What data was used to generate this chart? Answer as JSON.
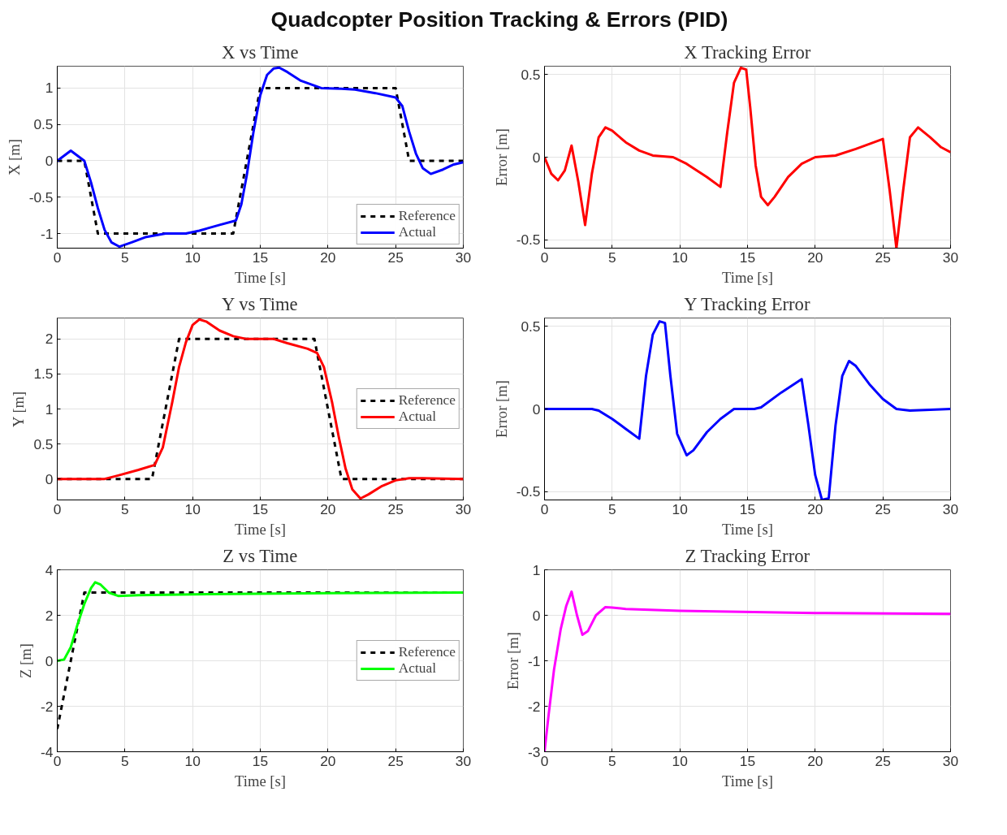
{
  "chart_data": [
    {
      "type": "line",
      "title": "X vs Time",
      "xlabel": "Time [s]",
      "ylabel": "X [m]",
      "annotations": [
        "Quadcopter Position Tracking & Errors (PID)"
      ],
      "xlim": [
        0,
        30
      ],
      "xticks": [
        0,
        5,
        10,
        15,
        20,
        25,
        30
      ],
      "ylim": [
        -1.2,
        1.3
      ],
      "yticks": [
        -1,
        -0.5,
        0,
        0.5,
        1
      ],
      "grid": true,
      "legend": "bottom right",
      "series": [
        {
          "name": "Reference",
          "color": "#000000",
          "line_style": "dashed",
          "x": [
            0,
            2,
            3,
            13,
            15,
            25,
            26,
            30
          ],
          "values": [
            0,
            0,
            -1,
            -1,
            1,
            1,
            0,
            0
          ]
        },
        {
          "name": "Actual",
          "color": "#0000ff",
          "line_style": "solid",
          "x": [
            0,
            1,
            2,
            2.5,
            3,
            3.5,
            4,
            4.6,
            5.5,
            6.5,
            8,
            9.5,
            10.5,
            12,
            13.2,
            13.6,
            14,
            14.5,
            15,
            15.5,
            16,
            16.4,
            17,
            18,
            19.5,
            21,
            22,
            23.5,
            25,
            25.5,
            26,
            26.5,
            27,
            27.6,
            28.5,
            29.3,
            30
          ],
          "values": [
            0,
            0.14,
            0,
            -0.3,
            -0.65,
            -0.95,
            -1.12,
            -1.18,
            -1.12,
            -1.05,
            -1.0,
            -1.0,
            -0.96,
            -0.88,
            -0.82,
            -0.6,
            -0.2,
            0.4,
            0.9,
            1.18,
            1.27,
            1.28,
            1.22,
            1.1,
            1.0,
            0.99,
            0.98,
            0.93,
            0.87,
            0.75,
            0.4,
            0.1,
            -0.1,
            -0.18,
            -0.12,
            -0.05,
            -0.02
          ]
        }
      ]
    },
    {
      "type": "line",
      "title": "X Tracking Error",
      "xlabel": "Time [s]",
      "ylabel": "Error [m]",
      "xlim": [
        0,
        30
      ],
      "xticks": [
        0,
        5,
        10,
        15,
        20,
        25,
        30
      ],
      "ylim": [
        -0.55,
        0.55
      ],
      "yticks": [
        -0.5,
        0,
        0.5
      ],
      "grid": true,
      "series": [
        {
          "color": "#ff0000",
          "line_style": "solid",
          "x": [
            0,
            0.5,
            1,
            1.5,
            2,
            2.5,
            3,
            3.5,
            4,
            4.5,
            5,
            6,
            7,
            8,
            9.5,
            10.5,
            12,
            13,
            13.5,
            14,
            14.5,
            14.9,
            15.2,
            15.6,
            16,
            16.5,
            17,
            18,
            19,
            20,
            21.5,
            23,
            25,
            25.5,
            26,
            26.5,
            27,
            27.6,
            28.5,
            29.3,
            30
          ],
          "values": [
            0,
            -0.1,
            -0.14,
            -0.08,
            0.07,
            -0.15,
            -0.41,
            -0.1,
            0.12,
            0.18,
            0.16,
            0.09,
            0.04,
            0.01,
            0,
            -0.04,
            -0.12,
            -0.18,
            0.15,
            0.45,
            0.54,
            0.53,
            0.3,
            -0.05,
            -0.24,
            -0.29,
            -0.24,
            -0.12,
            -0.04,
            0,
            0.01,
            0.05,
            0.11,
            -0.2,
            -0.55,
            -0.2,
            0.12,
            0.18,
            0.12,
            0.06,
            0.03
          ]
        }
      ]
    },
    {
      "type": "line",
      "title": "Y vs Time",
      "xlabel": "Time [s]",
      "ylabel": "Y [m]",
      "xlim": [
        0,
        30
      ],
      "xticks": [
        0,
        5,
        10,
        15,
        20,
        25,
        30
      ],
      "ylim": [
        -0.3,
        2.3
      ],
      "yticks": [
        0,
        0.5,
        1,
        1.5,
        2
      ],
      "grid": true,
      "legend": "right",
      "series": [
        {
          "name": "Reference",
          "color": "#000000",
          "line_style": "dashed",
          "x": [
            0,
            7,
            9,
            19,
            21,
            30
          ],
          "values": [
            0,
            0,
            2,
            2,
            0,
            0
          ]
        },
        {
          "name": "Actual",
          "color": "#ff0000",
          "line_style": "solid",
          "x": [
            0,
            3.5,
            4.5,
            6,
            7.2,
            7.8,
            8.5,
            9,
            9.5,
            10,
            10.5,
            11,
            12,
            13,
            14,
            16,
            17,
            18.5,
            19.2,
            19.7,
            20.3,
            20.8,
            21.3,
            21.8,
            22.4,
            23,
            24,
            25,
            26,
            27,
            30
          ],
          "values": [
            0,
            0,
            0.05,
            0.13,
            0.2,
            0.45,
            1.1,
            1.6,
            1.95,
            2.2,
            2.28,
            2.25,
            2.12,
            2.04,
            2.0,
            2.0,
            1.94,
            1.86,
            1.8,
            1.6,
            1.1,
            0.6,
            0.15,
            -0.15,
            -0.28,
            -0.22,
            -0.1,
            -0.02,
            0.01,
            0.01,
            0
          ]
        }
      ]
    },
    {
      "type": "line",
      "title": "Y Tracking Error",
      "xlabel": "Time [s]",
      "ylabel": "Error [m]",
      "xlim": [
        0,
        30
      ],
      "xticks": [
        0,
        5,
        10,
        15,
        20,
        25,
        30
      ],
      "ylim": [
        -0.55,
        0.55
      ],
      "yticks": [
        -0.5,
        0,
        0.5
      ],
      "grid": true,
      "series": [
        {
          "color": "#0000ff",
          "line_style": "solid",
          "x": [
            0,
            3.5,
            4,
            5,
            6,
            7,
            7.5,
            8,
            8.5,
            8.9,
            9.3,
            9.8,
            10.5,
            11,
            12,
            13,
            14,
            15.5,
            16,
            17.5,
            19,
            19.5,
            20,
            20.5,
            21,
            21.5,
            22,
            22.5,
            23,
            24,
            25,
            26,
            27,
            30
          ],
          "values": [
            0,
            0,
            -0.01,
            -0.06,
            -0.12,
            -0.18,
            0.2,
            0.45,
            0.53,
            0.52,
            0.2,
            -0.15,
            -0.28,
            -0.25,
            -0.14,
            -0.06,
            0,
            0,
            0.01,
            0.1,
            0.18,
            -0.1,
            -0.4,
            -0.55,
            -0.54,
            -0.1,
            0.2,
            0.29,
            0.26,
            0.15,
            0.06,
            0,
            -0.01,
            0
          ]
        }
      ]
    },
    {
      "type": "line",
      "title": "Z vs Time",
      "xlabel": "Time [s]",
      "ylabel": "Z [m]",
      "xlim": [
        0,
        30
      ],
      "xticks": [
        0,
        5,
        10,
        15,
        20,
        25,
        30
      ],
      "ylim": [
        -4,
        4
      ],
      "yticks": [
        -4,
        -2,
        0,
        2,
        4
      ],
      "grid": true,
      "legend": "right",
      "series": [
        {
          "name": "Reference",
          "color": "#000000",
          "line_style": "dashed",
          "x": [
            0,
            2,
            30
          ],
          "values": [
            -3,
            3,
            3
          ]
        },
        {
          "name": "Actual",
          "color": "#00ff00",
          "line_style": "solid",
          "x": [
            0,
            0.5,
            1,
            1.5,
            2,
            2.5,
            2.8,
            3.2,
            3.8,
            4.5,
            6,
            10,
            20,
            30
          ],
          "values": [
            0,
            0.05,
            0.6,
            1.6,
            2.5,
            3.2,
            3.45,
            3.35,
            3.0,
            2.85,
            2.88,
            2.92,
            2.97,
            3.0
          ]
        }
      ]
    },
    {
      "type": "line",
      "title": "Z Tracking Error",
      "xlabel": "Time [s]",
      "ylabel": "Error [m]",
      "xlim": [
        0,
        30
      ],
      "xticks": [
        0,
        5,
        10,
        15,
        20,
        25,
        30
      ],
      "ylim": [
        -3,
        1
      ],
      "yticks": [
        -3,
        -2,
        -1,
        0,
        1
      ],
      "grid": true,
      "series": [
        {
          "color": "#ff00ff",
          "line_style": "solid",
          "x": [
            0,
            0.3,
            0.7,
            1.2,
            1.6,
            2,
            2.4,
            2.8,
            3.2,
            3.8,
            4.5,
            5,
            6,
            10,
            20,
            30
          ],
          "values": [
            -3,
            -2.2,
            -1.2,
            -0.3,
            0.2,
            0.52,
            0,
            -0.43,
            -0.35,
            0,
            0.18,
            0.17,
            0.14,
            0.1,
            0.05,
            0.03
          ]
        }
      ]
    }
  ]
}
